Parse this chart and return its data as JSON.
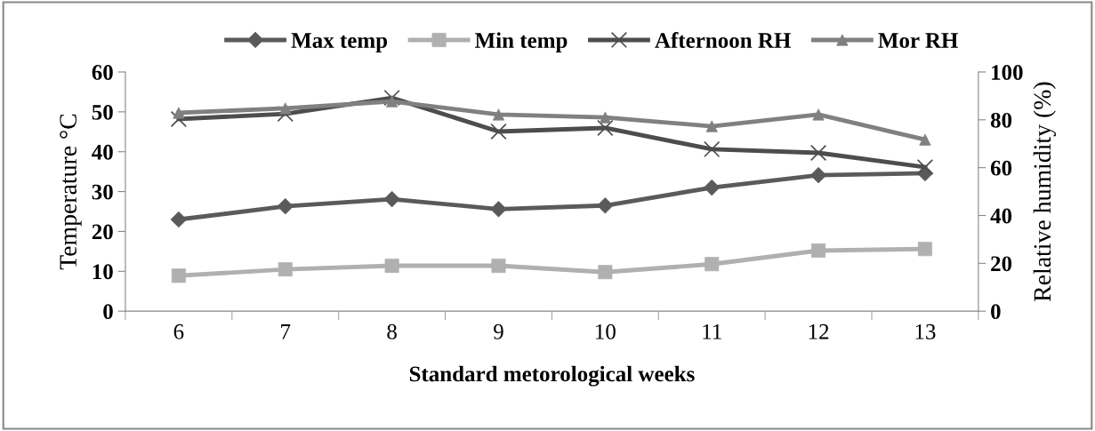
{
  "chart_data": {
    "type": "line",
    "xlabel": "Standard metorological weeks",
    "ylabel": "Temperature °C",
    "y2label": "Relative humidity (%)",
    "categories": [
      "6",
      "7",
      "8",
      "9",
      "10",
      "11",
      "12",
      "13"
    ],
    "series": [
      {
        "name": "Max temp",
        "color": "#5a5a5a",
        "marker": "diamond",
        "values": [
          23.0,
          26.3,
          28.1,
          25.6,
          26.5,
          31.0,
          34.1,
          34.6
        ]
      },
      {
        "name": "Min temp",
        "color": "#b0b0b0",
        "marker": "square",
        "values": [
          8.9,
          10.5,
          11.4,
          11.4,
          9.8,
          11.8,
          15.2,
          15.6
        ]
      },
      {
        "name": "Afternoon RH",
        "color": "#4d4d4d",
        "marker": "cross",
        "axis": "y2",
        "values": [
          80.3,
          82.5,
          89.2,
          75.1,
          76.6,
          67.7,
          66.2,
          60.2
        ]
      },
      {
        "name": "Mor RH",
        "color": "#808080",
        "marker": "triangle",
        "axis": "y2",
        "values": [
          82.9,
          84.8,
          87.7,
          82.2,
          81.0,
          77.3,
          82.2,
          71.7
        ]
      }
    ],
    "ylim": [
      0,
      60
    ],
    "yticks": [
      0,
      10,
      20,
      30,
      40,
      50,
      60
    ],
    "y2lim": [
      0,
      100
    ],
    "y2ticks": [
      0,
      20,
      40,
      60,
      80,
      100
    ],
    "grid": false,
    "legend": "top",
    "line_style": "solid"
  }
}
